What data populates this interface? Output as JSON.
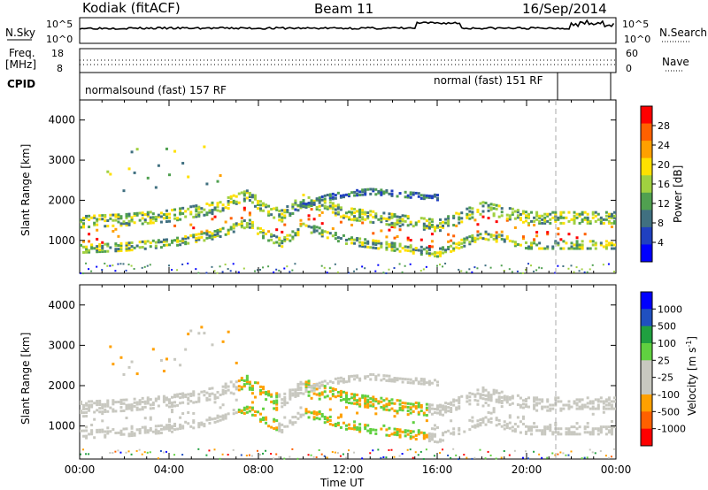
{
  "header": {
    "station": "Kodiak (fitACF)",
    "beam": "Beam 11",
    "date": "16/Sep/2014"
  },
  "strips": {
    "nsky_label": "N.Sky",
    "nsky_ticks": [
      "10^5",
      "10^0"
    ],
    "nsearch_label": "N.Search",
    "nsearch_ticks": [
      "10^5",
      "10^0"
    ],
    "freq_label_1": "Freq.",
    "freq_label_2": "[MHz]",
    "freq_ticks": [
      "18",
      "8"
    ],
    "nave_label": "Nave",
    "nave_ticks": [
      "60",
      "0"
    ],
    "cpid_label": "CPID",
    "cpid_segments": [
      "normalsound (fast) 157 RF",
      "normal (fast) 151 RF"
    ]
  },
  "colors": {
    "power_scale": [
      "#0000ff",
      "#2040c0",
      "#407080",
      "#50a050",
      "#a0d040",
      "#ffe000",
      "#ffa000",
      "#ff6000",
      "#ff0000"
    ],
    "velocity_scale": [
      "#0000ff",
      "#2050c0",
      "#20a040",
      "#60d040",
      "#c8c8c0",
      "#c8c8c0",
      "#ffa000",
      "#ff6000",
      "#ff0000"
    ],
    "ground_scatter": "#c8c8c0"
  },
  "chart_data": [
    {
      "type": "heatmap",
      "title": "Power",
      "ylabel": "Slant Range [km]",
      "xlabel": "Time UT",
      "x_ticks": [
        "00:00",
        "04:00",
        "08:00",
        "12:00",
        "16:00",
        "20:00",
        "00:00"
      ],
      "x_range_hours": [
        0,
        24
      ],
      "y_ticks": [
        1000,
        2000,
        3000,
        4000
      ],
      "y_range": [
        180,
        4500
      ],
      "colorbar_label": "Power [dB]",
      "colorbar_ticks": [
        4,
        8,
        12,
        16,
        20,
        24,
        28
      ],
      "colorbar_range": [
        0,
        30
      ],
      "bands": [
        {
          "x": [
            0,
            2,
            4,
            6,
            7.5,
            8.2,
            9,
            10,
            12,
            14,
            16,
            18,
            20,
            22,
            24
          ],
          "y": [
            1150,
            1200,
            1300,
            1500,
            1800,
            1500,
            1300,
            1700,
            1350,
            1200,
            1050,
            1500,
            1250,
            1250,
            1250
          ]
        },
        {
          "x": [
            9.5,
            11,
            12,
            13,
            14,
            15,
            16
          ],
          "y": [
            1800,
            2100,
            2200,
            2250,
            2200,
            2150,
            2100
          ]
        }
      ]
    },
    {
      "type": "heatmap",
      "title": "Velocity",
      "ylabel": "Slant Range [km]",
      "xlabel": "Time UT",
      "x_ticks": [
        "00:00",
        "04:00",
        "08:00",
        "12:00",
        "16:00",
        "20:00",
        "00:00"
      ],
      "x_range_hours": [
        0,
        24
      ],
      "y_ticks": [
        1000,
        2000,
        3000,
        4000
      ],
      "y_range": [
        180,
        4500
      ],
      "colorbar_label": "Velocity [m s^-1]",
      "colorbar_ticks": [
        1000,
        500,
        100,
        25,
        -25,
        -100,
        -500,
        -1000
      ]
    }
  ],
  "axis": {
    "xlabel": "Time UT",
    "ylabel_top": "Slant Range [km]",
    "ylabel_bottom": "Slant Range [km]",
    "power_label": "Power [dB]",
    "velocity_label": "Velocity [m s",
    "velocity_exp": "-1",
    "velocity_close": "]"
  }
}
